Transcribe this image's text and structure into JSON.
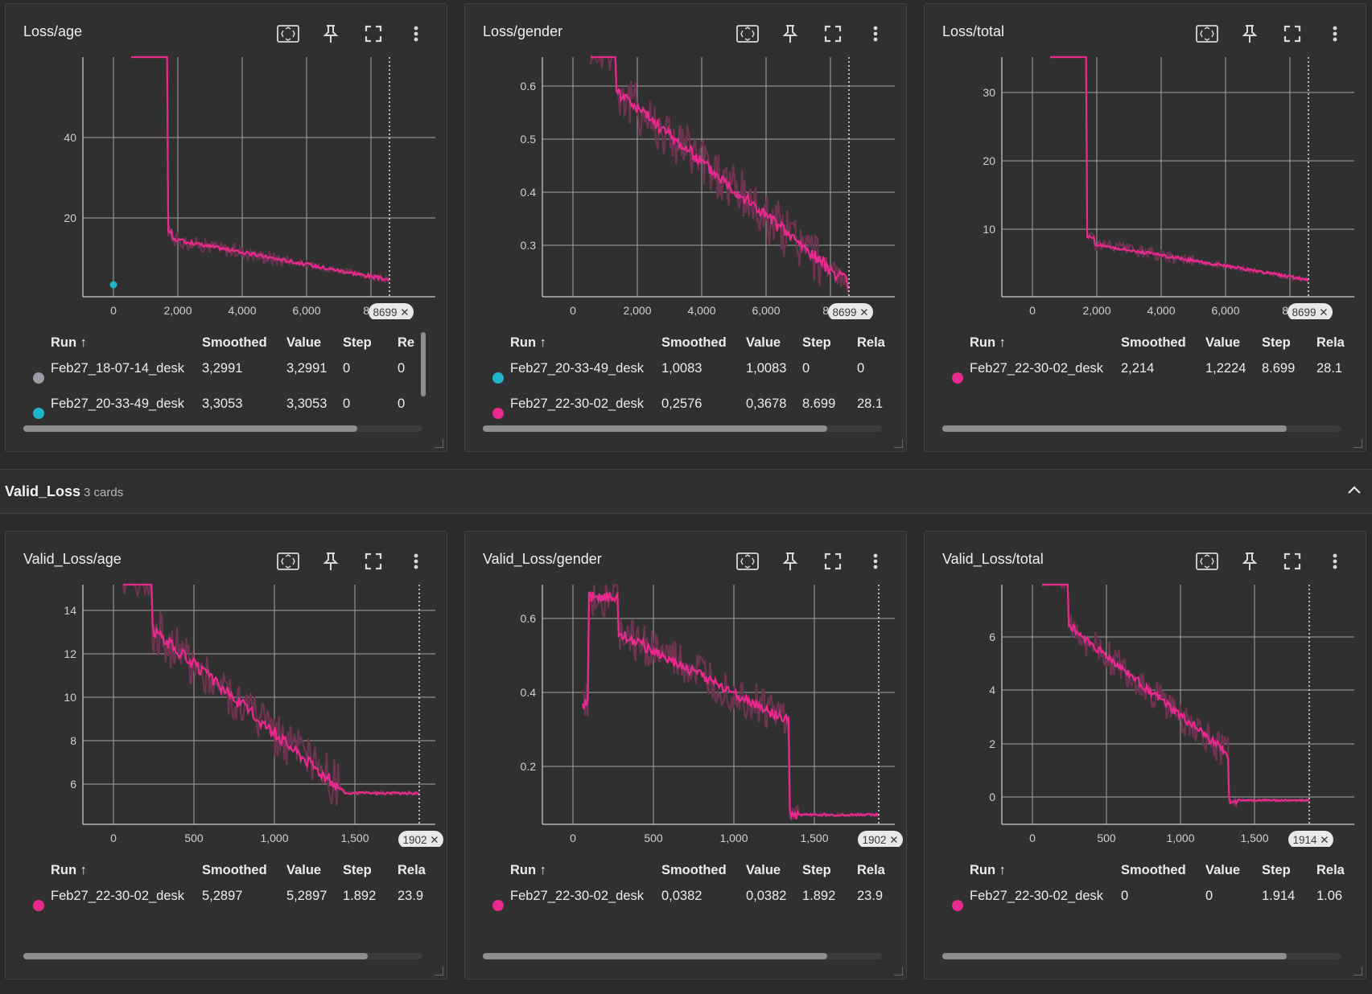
{
  "colors": {
    "pink": "#e8298e",
    "teal": "#1eb5c9",
    "grey": "#9a9ea6",
    "trace": "#6e3350",
    "grid": "#9b9b9b",
    "axis": "#c7c7c7"
  },
  "icons": [
    "fit-domain-icon",
    "pin-icon",
    "fullscreen-icon",
    "more-vert-icon"
  ],
  "group": {
    "title": "Valid_Loss",
    "count": "3 cards"
  },
  "headers": {
    "run": "Run ↑",
    "smoothed": "Smoothed",
    "value": "Value",
    "step": "Step"
  },
  "cards": [
    {
      "title": "Loss/age",
      "chart_data": {
        "type": "line",
        "x_ticks": [
          "0",
          "2,000",
          "4,000",
          "6,000",
          "8,0"
        ],
        "y_ticks": [
          "20",
          "40"
        ],
        "cursor_label": "8699 ✕",
        "cursor_step": 8699,
        "xlim": [
          -1000,
          9800
        ],
        "ylim": [
          0,
          60
        ],
        "series": [
          {
            "name": "Feb27_22-30-02_desk",
            "color": "pink"
          }
        ]
      },
      "rel_header": "Re",
      "rows": [
        {
          "run": "Feb27_18-07-14_desk",
          "smoothed": "3,2991",
          "value": "3,2991",
          "step": "0",
          "rel": "0",
          "color": "grey"
        },
        {
          "run": "Feb27_20-33-49_desk",
          "smoothed": "3,3053",
          "value": "3,3053",
          "step": "0",
          "rel": "0",
          "color": "teal"
        }
      ]
    },
    {
      "title": "Loss/gender",
      "chart_data": {
        "type": "line",
        "x_ticks": [
          "0",
          "2,000",
          "4,000",
          "6,000",
          "8,0"
        ],
        "y_ticks": [
          "0.3",
          "0.4",
          "0.5",
          "0.6"
        ],
        "cursor_label": "8699 ✕",
        "cursor_step": 8699,
        "xlim": [
          -1000,
          9800
        ],
        "ylim": [
          0.2,
          0.65
        ],
        "series": [
          {
            "name": "Feb27_22-30-02_desk",
            "color": "pink"
          }
        ]
      },
      "rel_header": "Rela",
      "rows": [
        {
          "run": "Feb27_20-33-49_desk",
          "smoothed": "1,0083",
          "value": "1,0083",
          "step": "0",
          "rel": "0",
          "color": "teal"
        },
        {
          "run": "Feb27_22-30-02_desk",
          "smoothed": "0,2576",
          "value": "0,3678",
          "step": "8.699",
          "rel": "28.1",
          "color": "pink"
        }
      ]
    },
    {
      "title": "Loss/total",
      "chart_data": {
        "type": "line",
        "x_ticks": [
          "0",
          "2,000",
          "4,000",
          "6,000",
          "8,0"
        ],
        "y_ticks": [
          "10",
          "20",
          "30"
        ],
        "cursor_label": "8699 ✕",
        "cursor_step": 8699,
        "xlim": [
          -1000,
          9800
        ],
        "ylim": [
          0,
          35
        ],
        "series": [
          {
            "name": "Feb27_22-30-02_desk",
            "color": "pink"
          }
        ]
      },
      "rel_header": "Rela",
      "rows": [
        {
          "run": "Feb27_22-30-02_desk",
          "smoothed": "2,214",
          "value": "1,2224",
          "step": "8.699",
          "rel": "28.1",
          "color": "pink"
        }
      ]
    },
    {
      "title": "Valid_Loss/age",
      "chart_data": {
        "type": "line",
        "x_ticks": [
          "0",
          "500",
          "1,000",
          "1,500"
        ],
        "y_ticks": [
          "6",
          "8",
          "10",
          "12",
          "14"
        ],
        "cursor_label": "1902 ✕",
        "cursor_step": 1902,
        "xlim": [
          -200,
          1990
        ],
        "ylim": [
          4,
          15
        ],
        "series": [
          {
            "name": "Feb27_22-30-02_desk",
            "color": "pink"
          }
        ]
      },
      "rel_header": "Rela",
      "rows": [
        {
          "run": "Feb27_22-30-02_desk",
          "smoothed": "5,2897",
          "value": "5,2897",
          "step": "1.892",
          "rel": "23.9",
          "color": "pink"
        }
      ]
    },
    {
      "title": "Valid_Loss/gender",
      "chart_data": {
        "type": "line",
        "x_ticks": [
          "0",
          "500",
          "1,000",
          "1,500"
        ],
        "y_ticks": [
          "0.2",
          "0.4",
          "0.6"
        ],
        "cursor_label": "1902 ✕",
        "cursor_step": 1902,
        "xlim": [
          -200,
          1990
        ],
        "ylim": [
          0,
          0.65
        ],
        "series": [
          {
            "name": "Feb27_22-30-02_desk",
            "color": "pink"
          }
        ]
      },
      "rel_header": "Rela",
      "rows": [
        {
          "run": "Feb27_22-30-02_desk",
          "smoothed": "0,0382",
          "value": "0,0382",
          "step": "1.892",
          "rel": "23.9",
          "color": "pink"
        }
      ]
    },
    {
      "title": "Valid_Loss/total",
      "chart_data": {
        "type": "line",
        "x_ticks": [
          "0",
          "500",
          "1,000",
          "1,500"
        ],
        "y_ticks": [
          "0",
          "2",
          "4",
          "6"
        ],
        "cursor_label": "1914 ✕",
        "cursor_step": 1914,
        "xlim": [
          -200,
          2000
        ],
        "ylim": [
          -1,
          7.8
        ],
        "series": [
          {
            "name": "Feb27_22-30-02_desk",
            "color": "pink"
          }
        ]
      },
      "rel_header": "Rela",
      "rows": [
        {
          "run": "Feb27_22-30-02_desk",
          "smoothed": "0",
          "value": "0",
          "step": "1.914",
          "rel": "1.06",
          "color": "pink"
        }
      ]
    }
  ]
}
